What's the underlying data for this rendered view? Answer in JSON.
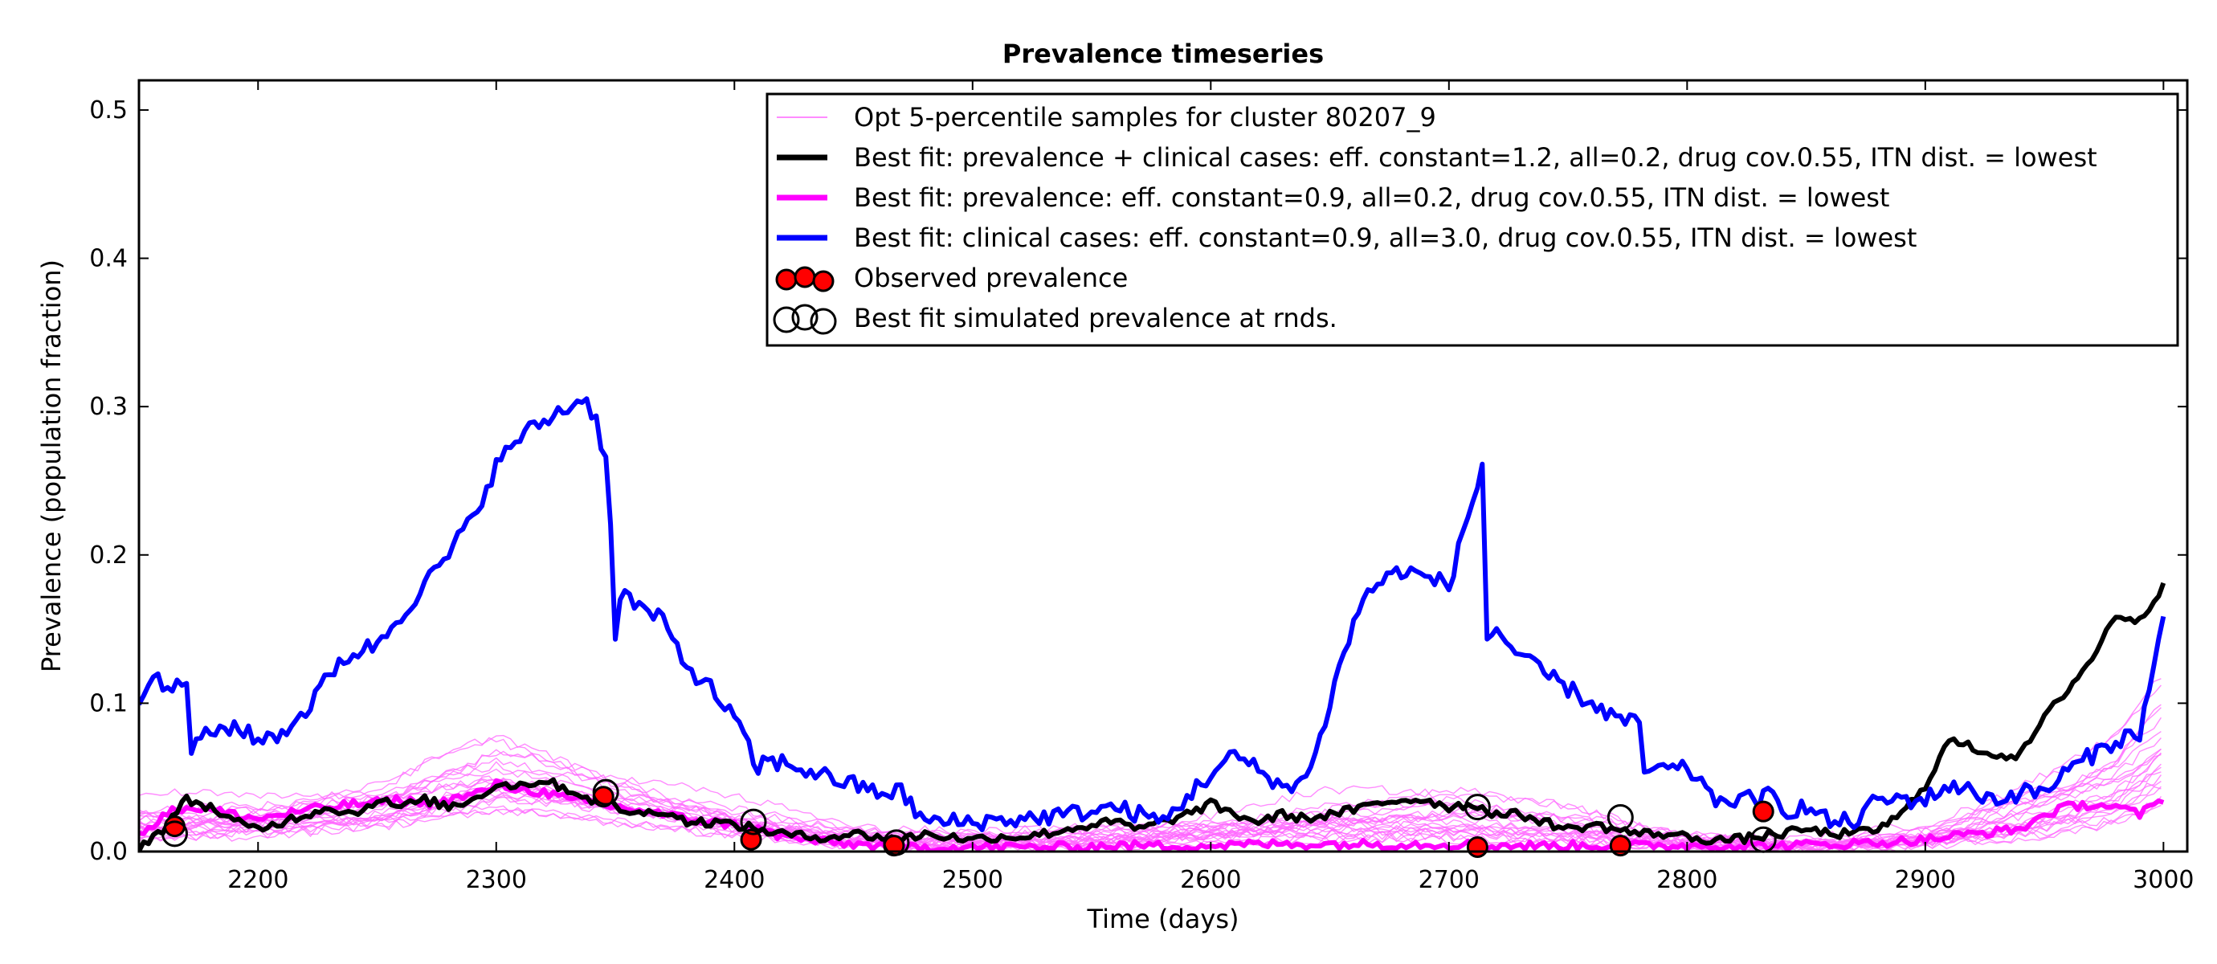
{
  "chart_data": {
    "type": "line",
    "title": "Prevalence timeseries",
    "xlabel": "Time (days)",
    "ylabel": "Prevalence (population fraction)",
    "xlim": [
      2150,
      3010
    ],
    "ylim": [
      0.0,
      0.52
    ],
    "xticks": [
      2200,
      2300,
      2400,
      2500,
      2600,
      2700,
      2800,
      2900,
      3000
    ],
    "yticks": [
      0.0,
      0.1,
      0.2,
      0.3,
      0.4,
      0.5
    ],
    "xtick_labels": [
      "2200",
      "2300",
      "2400",
      "2500",
      "2600",
      "2700",
      "2800",
      "2900",
      "3000"
    ],
    "ytick_labels": [
      "0.0",
      "0.1",
      "0.2",
      "0.3",
      "0.4",
      "0.5"
    ],
    "grid": false,
    "legend_position": "top-right",
    "legend": [
      "Opt 5-percentile samples for cluster 80207_9",
      "Best fit: prevalence + clinical cases: eff. constant=1.2, all=0.2, drug cov.0.55, ITN dist. = lowest",
      "Best fit: prevalence: eff. constant=0.9, all=0.2, drug cov.0.55, ITN dist. = lowest",
      "Best fit: clinical cases: eff. constant=0.9, all=3.0, drug cov.0.55, ITN dist. = lowest",
      "Observed prevalence",
      "Best fit simulated prevalence at rnds."
    ],
    "colors": {
      "samples": "#ff66ff",
      "best_prev_clinical": "#000000",
      "best_prev": "#ff00ff",
      "best_clinical": "#0000ff",
      "observed": "#ff0000"
    },
    "series": [
      {
        "name": "Best fit: clinical cases: eff. constant=0.9, all=3.0, drug cov.0.55, ITN dist. = lowest",
        "color": "#0000ff",
        "x": [
          2150,
          2155,
          2160,
          2165,
          2170,
          2172,
          2180,
          2190,
          2200,
          2210,
          2220,
          2235,
          2250,
          2265,
          2280,
          2290,
          2300,
          2310,
          2320,
          2330,
          2338,
          2342,
          2345,
          2347,
          2350,
          2352,
          2360,
          2370,
          2380,
          2390,
          2400,
          2410,
          2412,
          2420,
          2440,
          2460,
          2470,
          2480,
          2500,
          2520,
          2540,
          2560,
          2580,
          2595,
          2610,
          2625,
          2635,
          2645,
          2655,
          2665,
          2680,
          2700,
          2715,
          2716,
          2720,
          2730,
          2750,
          2770,
          2780,
          2782,
          2790,
          2800,
          2805,
          2810,
          2820,
          2830,
          2835,
          2840,
          2850,
          2860,
          2870,
          2880,
          2890,
          2900,
          2910,
          2920,
          2930,
          2940,
          2950,
          2960,
          2970,
          2980,
          2990,
          3000
        ],
        "y": [
          0.105,
          0.12,
          0.11,
          0.11,
          0.115,
          0.07,
          0.08,
          0.085,
          0.075,
          0.08,
          0.095,
          0.13,
          0.14,
          0.17,
          0.2,
          0.225,
          0.26,
          0.28,
          0.29,
          0.3,
          0.305,
          0.29,
          0.27,
          0.265,
          0.14,
          0.175,
          0.165,
          0.155,
          0.125,
          0.11,
          0.09,
          0.055,
          0.06,
          0.06,
          0.05,
          0.04,
          0.04,
          0.02,
          0.02,
          0.022,
          0.025,
          0.03,
          0.02,
          0.045,
          0.065,
          0.05,
          0.04,
          0.07,
          0.13,
          0.175,
          0.19,
          0.18,
          0.265,
          0.145,
          0.15,
          0.13,
          0.11,
          0.09,
          0.085,
          0.055,
          0.055,
          0.055,
          0.05,
          0.035,
          0.035,
          0.035,
          0.038,
          0.028,
          0.03,
          0.02,
          0.02,
          0.035,
          0.035,
          0.035,
          0.045,
          0.04,
          0.035,
          0.04,
          0.04,
          0.055,
          0.065,
          0.075,
          0.08,
          0.155
        ]
      },
      {
        "name": "Best fit: prevalence + clinical cases: eff. constant=1.2, all=0.2, drug cov.0.55, ITN dist. = lowest",
        "color": "#000000",
        "x": [
          2150,
          2160,
          2170,
          2180,
          2190,
          2200,
          2210,
          2220,
          2230,
          2240,
          2250,
          2260,
          2270,
          2280,
          2290,
          2300,
          2310,
          2320,
          2330,
          2340,
          2345,
          2350,
          2360,
          2370,
          2380,
          2390,
          2400,
          2410,
          2420,
          2430,
          2440,
          2450,
          2460,
          2470,
          2480,
          2490,
          2500,
          2510,
          2520,
          2530,
          2540,
          2550,
          2560,
          2570,
          2580,
          2590,
          2600,
          2610,
          2620,
          2630,
          2640,
          2650,
          2660,
          2670,
          2680,
          2690,
          2700,
          2710,
          2720,
          2730,
          2740,
          2750,
          2760,
          2770,
          2780,
          2790,
          2800,
          2810,
          2820,
          2830,
          2840,
          2850,
          2860,
          2870,
          2880,
          2890,
          2900,
          2910,
          2920,
          2930,
          2940,
          2950,
          2960,
          2970,
          2980,
          2990,
          3000
        ],
        "y": [
          0.003,
          0.015,
          0.035,
          0.03,
          0.02,
          0.015,
          0.02,
          0.025,
          0.03,
          0.025,
          0.035,
          0.03,
          0.035,
          0.03,
          0.035,
          0.045,
          0.045,
          0.048,
          0.042,
          0.035,
          0.038,
          0.03,
          0.025,
          0.028,
          0.02,
          0.02,
          0.018,
          0.015,
          0.012,
          0.01,
          0.01,
          0.012,
          0.01,
          0.008,
          0.012,
          0.01,
          0.008,
          0.01,
          0.01,
          0.012,
          0.015,
          0.018,
          0.02,
          0.015,
          0.02,
          0.025,
          0.032,
          0.025,
          0.02,
          0.025,
          0.022,
          0.025,
          0.028,
          0.032,
          0.035,
          0.035,
          0.03,
          0.032,
          0.025,
          0.025,
          0.02,
          0.015,
          0.018,
          0.015,
          0.012,
          0.012,
          0.01,
          0.008,
          0.008,
          0.01,
          0.012,
          0.015,
          0.012,
          0.012,
          0.015,
          0.025,
          0.045,
          0.075,
          0.07,
          0.065,
          0.065,
          0.09,
          0.11,
          0.13,
          0.16,
          0.155,
          0.18
        ]
      },
      {
        "name": "Best fit: prevalence: eff. constant=0.9, all=0.2, drug cov.0.55, ITN dist. = lowest",
        "color": "#ff00ff",
        "x": [
          2150,
          2160,
          2170,
          2180,
          2190,
          2200,
          2210,
          2220,
          2230,
          2240,
          2250,
          2260,
          2270,
          2280,
          2290,
          2300,
          2310,
          2320,
          2330,
          2340,
          2350,
          2360,
          2370,
          2380,
          2390,
          2400,
          2410,
          2420,
          2430,
          2440,
          2450,
          2460,
          2470,
          2480,
          2490,
          2500,
          2520,
          2540,
          2560,
          2580,
          2600,
          2620,
          2640,
          2660,
          2680,
          2700,
          2720,
          2740,
          2760,
          2780,
          2800,
          2820,
          2840,
          2860,
          2880,
          2900,
          2920,
          2940,
          2950,
          2960,
          2970,
          2980,
          2990,
          3000
        ],
        "y": [
          0.01,
          0.025,
          0.03,
          0.028,
          0.025,
          0.022,
          0.025,
          0.028,
          0.03,
          0.032,
          0.033,
          0.035,
          0.032,
          0.035,
          0.038,
          0.045,
          0.042,
          0.04,
          0.035,
          0.033,
          0.03,
          0.028,
          0.025,
          0.022,
          0.02,
          0.018,
          0.015,
          0.01,
          0.008,
          0.006,
          0.005,
          0.004,
          0.003,
          0.003,
          0.003,
          0.003,
          0.003,
          0.003,
          0.004,
          0.004,
          0.004,
          0.005,
          0.005,
          0.005,
          0.005,
          0.005,
          0.004,
          0.004,
          0.004,
          0.004,
          0.004,
          0.004,
          0.004,
          0.005,
          0.006,
          0.008,
          0.012,
          0.015,
          0.025,
          0.03,
          0.032,
          0.03,
          0.025,
          0.035
        ]
      }
    ],
    "sample_band": {
      "name": "Opt 5-percentile samples for cluster 80207_9",
      "color": "#ff66ff",
      "x": [
        2150,
        2200,
        2250,
        2300,
        2320,
        2350,
        2400,
        2450,
        2500,
        2550,
        2600,
        2650,
        2700,
        2750,
        2800,
        2850,
        2900,
        2950,
        2980,
        3000
      ],
      "lower": [
        0.0,
        0.005,
        0.01,
        0.015,
        0.015,
        0.01,
        0.005,
        0.0,
        0.0,
        0.0,
        0.0,
        0.0,
        0.0,
        0.0,
        0.0,
        0.0,
        0.0,
        0.0,
        0.005,
        0.01
      ],
      "upper": [
        0.045,
        0.04,
        0.05,
        0.09,
        0.08,
        0.065,
        0.04,
        0.02,
        0.015,
        0.02,
        0.03,
        0.045,
        0.05,
        0.035,
        0.015,
        0.01,
        0.02,
        0.06,
        0.09,
        0.14
      ]
    },
    "observed_prevalence": {
      "name": "Observed prevalence",
      "x": [
        2165,
        2345,
        2407,
        2467,
        2712,
        2772,
        2832
      ],
      "y": [
        0.017,
        0.037,
        0.008,
        0.004,
        0.003,
        0.004,
        0.027
      ]
    },
    "simulated_prevalence_at_rnds": {
      "name": "Best fit simulated prevalence at rnds.",
      "x": [
        2165,
        2346,
        2408,
        2468,
        2712,
        2772,
        2832
      ],
      "y": [
        0.012,
        0.04,
        0.02,
        0.006,
        0.03,
        0.023,
        0.008
      ]
    }
  }
}
